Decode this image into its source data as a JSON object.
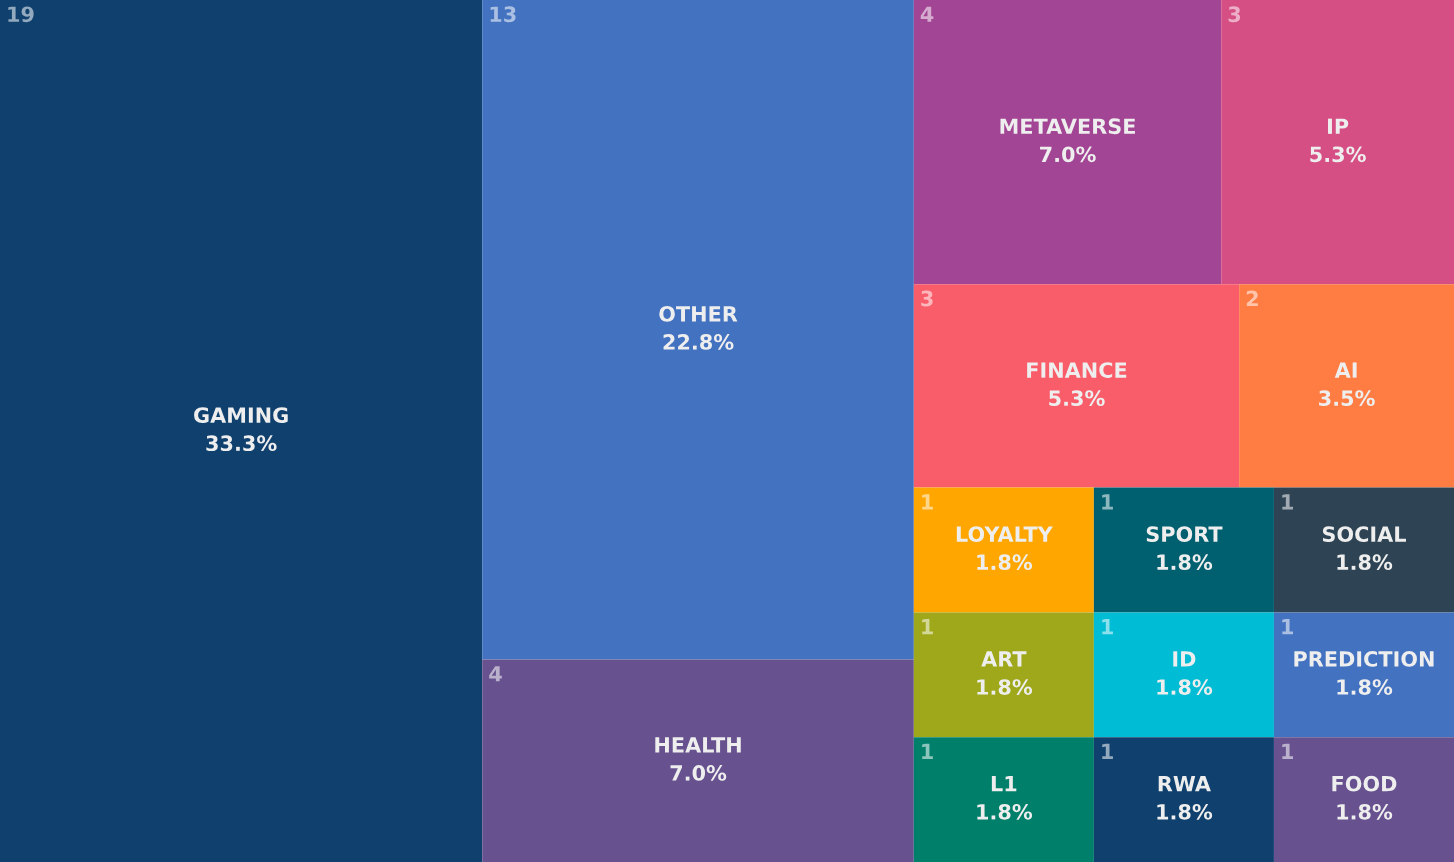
{
  "chart_data": {
    "type": "other",
    "categories": [
      "GAMING",
      "OTHER",
      "HEALTH",
      "METAVERSE",
      "IP",
      "FINANCE",
      "AI",
      "LOYALTY",
      "ART",
      "L1",
      "SPORT",
      "SOCIAL",
      "ID",
      "RWA",
      "PREDICTION",
      "FOOD"
    ],
    "values": [
      33.3,
      22.8,
      7.0,
      7.0,
      5.3,
      5.3,
      3.5,
      1.8,
      1.8,
      1.8,
      1.8,
      1.8,
      1.8,
      1.8,
      1.8,
      1.8
    ],
    "annotations": [
      "19",
      "13",
      "4",
      "4",
      "3",
      "3",
      "2",
      "1",
      "1",
      "1",
      "1",
      "1",
      "1",
      "1",
      "1",
      "1"
    ],
    "value_labels": [
      "33.3%",
      "22.8%",
      "7.0%",
      "7.0%",
      "5.3%",
      "5.3%",
      "3.5%",
      "1.8%",
      "1.8%",
      "1.8%",
      "1.8%",
      "1.8%",
      "1.8%",
      "1.8%",
      "1.8%",
      "1.8%"
    ],
    "colors": [
      "#0f406e",
      "#4272c0",
      "#67528f",
      "#a34595",
      "#d64f84",
      "#f95d6a",
      "#ff7c43",
      "#ffa600",
      "#9ea81a",
      "#00806a",
      "#006070",
      "#2e4454",
      "#00bcd4",
      "#0f406e",
      "#4272c0",
      "#67528f"
    ]
  }
}
